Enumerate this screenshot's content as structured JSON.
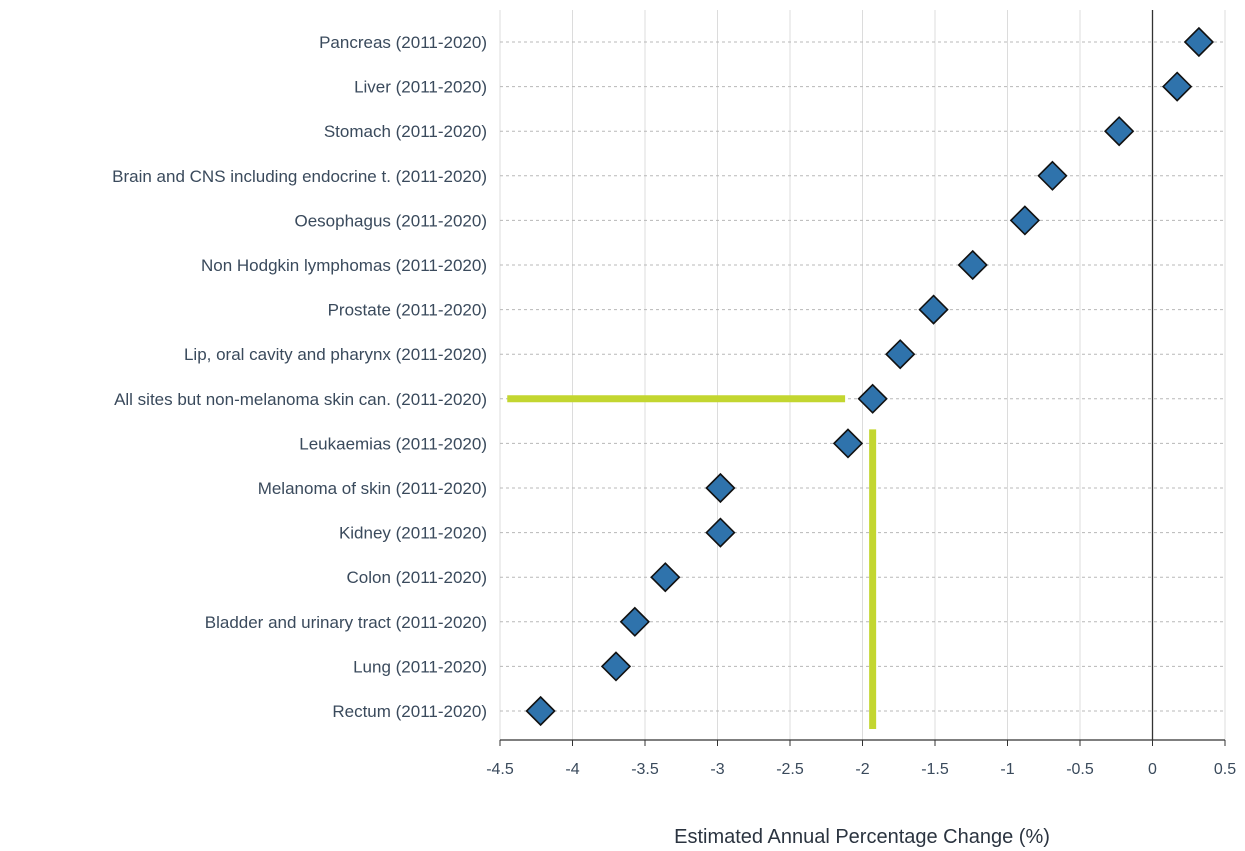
{
  "chart_data": {
    "type": "scatter",
    "xlabel": "Estimated Annual Percentage Change (%)",
    "xlim": [
      -4.5,
      0.5
    ],
    "xticks": [
      "-4.5",
      "-4",
      "-3.5",
      "-3",
      "-2.5",
      "-2",
      "-1.5",
      "-1",
      "-0.5",
      "0",
      "0.5"
    ],
    "xtick_values": [
      -4.5,
      -4,
      -3.5,
      -3,
      -2.5,
      -2,
      -1.5,
      -1,
      -0.5,
      0,
      0.5
    ],
    "grid": true,
    "zero_line": 0,
    "marker": {
      "shape": "diamond",
      "fill": "#2f73ac",
      "stroke": "#111111"
    },
    "categories": [
      "Pancreas (2011-2020)",
      "Liver (2011-2020)",
      "Stomach (2011-2020)",
      "Brain and CNS including endocrine t. (2011-2020)",
      "Oesophagus (2011-2020)",
      "Non Hodgkin lymphomas (2011-2020)",
      "Prostate (2011-2020)",
      "Lip, oral cavity and pharynx (2011-2020)",
      "All sites but non-melanoma skin can. (2011-2020)",
      "Leukaemias (2011-2020)",
      "Melanoma of skin (2011-2020)",
      "Kidney (2011-2020)",
      "Colon (2011-2020)",
      "Bladder and urinary tract (2011-2020)",
      "Lung (2011-2020)",
      "Rectum (2011-2020)"
    ],
    "values": [
      0.32,
      0.17,
      -0.23,
      -0.69,
      -0.88,
      -1.24,
      -1.51,
      -1.74,
      -1.93,
      -2.1,
      -2.98,
      -2.98,
      -3.36,
      -3.57,
      -3.7,
      -4.22
    ],
    "annotations": {
      "color": "#c3d630",
      "horizontal_line": {
        "category": "All sites but non-melanoma skin can. (2011-2020)",
        "x_from": -4.45,
        "x_to": -2.12
      },
      "vertical_line": {
        "x": -1.93,
        "from_category": "Leukaemias (2011-2020)",
        "extends_to": "below-last-category"
      }
    }
  }
}
